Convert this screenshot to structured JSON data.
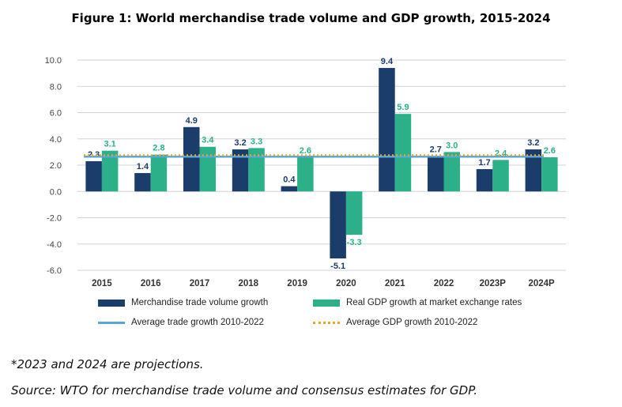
{
  "chart_data": {
    "type": "bar",
    "title": "Figure 1: World merchandise trade volume and GDP growth, 2015-2024",
    "categories": [
      "2015",
      "2016",
      "2017",
      "2018",
      "2019",
      "2020",
      "2021",
      "2022",
      "2023P",
      "2024P"
    ],
    "series": [
      {
        "name": "Merchandise trade volume growth",
        "color": "#1b3d6b",
        "values": [
          2.3,
          1.4,
          4.9,
          3.2,
          0.4,
          -5.1,
          9.4,
          2.7,
          1.7,
          3.2
        ],
        "labels": [
          "2.3",
          "1.4",
          "4.9",
          "3.2",
          "0.4",
          "-5.1",
          "9.4",
          "2.7",
          "1.7",
          "3.2"
        ]
      },
      {
        "name": "Real GDP growth at market exchange rates",
        "color": "#2bb08a",
        "values": [
          3.1,
          2.8,
          3.4,
          3.3,
          2.6,
          -3.3,
          5.9,
          3.0,
          2.4,
          2.6
        ],
        "labels": [
          "3.1",
          "2.8",
          "3.4",
          "3.3",
          "2.6",
          "-3.3",
          "5.9",
          "3.0",
          "2.4",
          "2.6"
        ]
      }
    ],
    "reference_lines": [
      {
        "name": "Average trade growth 2010-2022",
        "value": 2.65,
        "color": "#56a6dc",
        "style": "solid"
      },
      {
        "name": "Average GDP growth 2010-2022",
        "value": 2.75,
        "color": "#e0a92c",
        "style": "dotted"
      }
    ],
    "yticks": [
      "10.0",
      "8.0",
      "6.0",
      "4.0",
      "2.0",
      "0.0",
      "-2.0",
      "-4.0",
      "-6.0"
    ],
    "ylim": [
      -6,
      10
    ],
    "grid": true,
    "legend_position": "bottom"
  },
  "notes": {
    "projection": "*2023 and 2024 are projections.",
    "source": "Source: WTO for merchandise trade volume and consensus estimates for GDP."
  }
}
